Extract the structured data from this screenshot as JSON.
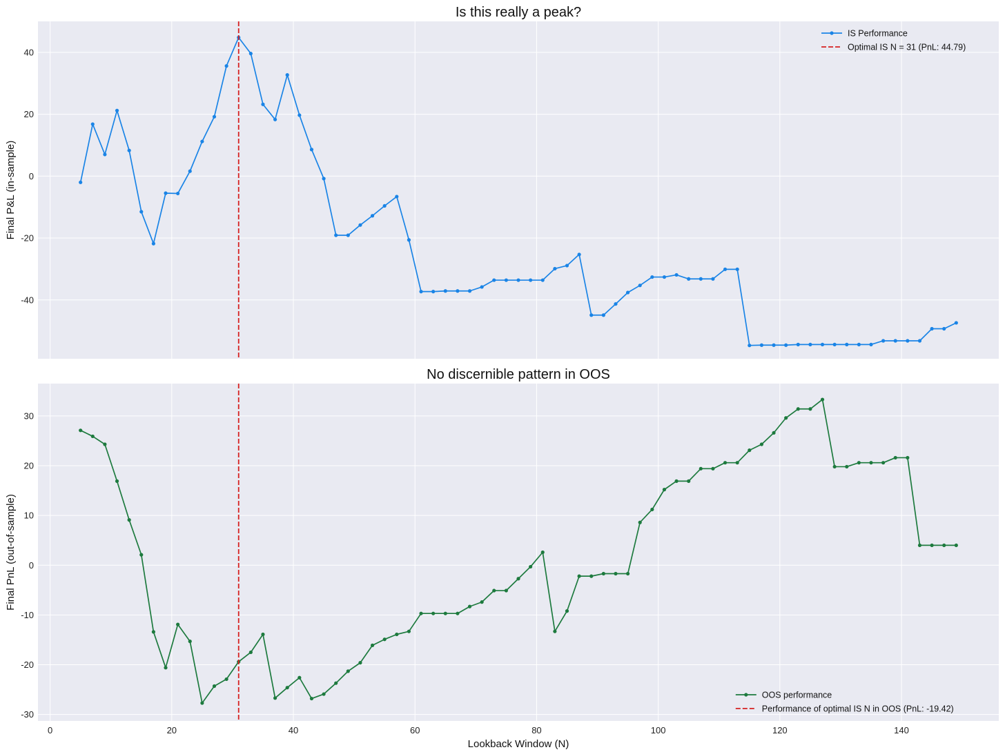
{
  "chart_data": [
    {
      "type": "line",
      "title": "Is this really a peak?",
      "xlabel": "",
      "ylabel": "Final P&L (in-sample)",
      "xlim": [
        -2,
        156
      ],
      "ylim": [
        -59,
        50
      ],
      "x_ticks": [
        0,
        20,
        40,
        60,
        80,
        100,
        120,
        140
      ],
      "y_ticks": [
        40,
        20,
        0,
        -20,
        -40
      ],
      "y_tick_labels": [
        "40",
        "20",
        "0",
        "-20",
        "-40"
      ],
      "grid": true,
      "background": "#e9eaf2",
      "legend_position": "top-right",
      "x": [
        5,
        7,
        9,
        11,
        13,
        15,
        17,
        19,
        21,
        23,
        25,
        27,
        29,
        31,
        33,
        35,
        37,
        39,
        41,
        43,
        45,
        47,
        49,
        51,
        53,
        55,
        57,
        59,
        61,
        63,
        65,
        67,
        69,
        71,
        73,
        75,
        77,
        79,
        81,
        83,
        85,
        87,
        89,
        91,
        93,
        95,
        97,
        99,
        101,
        103,
        105,
        107,
        109,
        111,
        113,
        115,
        117,
        119,
        121,
        123,
        125,
        127,
        129,
        131,
        133,
        135,
        137,
        139,
        141,
        143,
        145,
        147,
        149
      ],
      "series": [
        {
          "name": "IS Performance",
          "color": "#1a84e6",
          "values": [
            -2,
            16.8,
            7,
            21.2,
            8.3,
            -11.5,
            -21.8,
            -5.5,
            -5.6,
            1.6,
            11.2,
            19.2,
            35.6,
            44.8,
            39.6,
            23.2,
            18.3,
            32.7,
            19.7,
            8.6,
            -0.8,
            -19.1,
            -19.1,
            -15.8,
            -12.8,
            -9.6,
            -6.6,
            -20.6,
            -37.3,
            -37.3,
            -37.1,
            -37.1,
            -37.1,
            -35.8,
            -33.6,
            -33.6,
            -33.6,
            -33.6,
            -33.6,
            -29.9,
            -28.9,
            -25.3,
            -44.9,
            -44.9,
            -41.3,
            -37.6,
            -35.3,
            -32.6,
            -32.6,
            -31.9,
            -33.2,
            -33.2,
            -33.2,
            -30.1,
            -30.1,
            -54.7,
            -54.6,
            -54.6,
            -54.6,
            -54.4,
            -54.4,
            -54.4,
            -54.4,
            -54.4,
            -54.4,
            -54.4,
            -53.2,
            -53.2,
            -53.2,
            -53.2,
            -49.3,
            -49.3,
            -47.4
          ]
        },
        {
          "name": "Optimal IS N = 31 (PnL: 44.79)",
          "color": "#d62020",
          "style": "dashed",
          "x_value": 31
        }
      ]
    },
    {
      "type": "line",
      "title": "No discernible pattern in OOS",
      "xlabel": "Lookback Window (N)",
      "ylabel": "Final PnL (out-of-sample)",
      "xlim": [
        -2,
        156
      ],
      "ylim": [
        -31.3,
        36.5
      ],
      "x_ticks": [
        0,
        20,
        40,
        60,
        80,
        100,
        120,
        140
      ],
      "x_tick_labels": [
        "0",
        "20",
        "40",
        "60",
        "80",
        "100",
        "120",
        "140"
      ],
      "y_ticks": [
        30,
        20,
        10,
        0,
        -10,
        -20,
        -30
      ],
      "y_tick_labels": [
        "30",
        "20",
        "10",
        "0",
        "-10",
        "-20",
        "-30"
      ],
      "grid": true,
      "background": "#e9eaf2",
      "legend_position": "bottom-right",
      "x": [
        5,
        7,
        9,
        11,
        13,
        15,
        17,
        19,
        21,
        23,
        25,
        27,
        29,
        31,
        33,
        35,
        37,
        39,
        41,
        43,
        45,
        47,
        49,
        51,
        53,
        55,
        57,
        59,
        61,
        63,
        65,
        67,
        69,
        71,
        73,
        75,
        77,
        79,
        81,
        83,
        85,
        87,
        89,
        91,
        93,
        95,
        97,
        99,
        101,
        103,
        105,
        107,
        109,
        111,
        113,
        115,
        117,
        119,
        121,
        123,
        125,
        127,
        129,
        131,
        133,
        135,
        137,
        139,
        141,
        143,
        145,
        147,
        149
      ],
      "series": [
        {
          "name": "OOS performance",
          "color": "#1d7a3e",
          "values": [
            27.1,
            25.9,
            24.3,
            16.9,
            9.1,
            2.1,
            -13.4,
            -20.6,
            -11.9,
            -15.3,
            -27.7,
            -24.3,
            -22.9,
            -19.4,
            -17.5,
            -13.9,
            -26.7,
            -24.6,
            -22.6,
            -26.8,
            -25.9,
            -23.7,
            -21.3,
            -19.6,
            -16.1,
            -14.9,
            -13.9,
            -13.3,
            -9.7,
            -9.7,
            -9.7,
            -9.7,
            -8.3,
            -7.4,
            -5.1,
            -5.1,
            -2.7,
            -0.3,
            2.6,
            -13.3,
            -9.2,
            -2.2,
            -2.2,
            -1.7,
            -1.7,
            -1.7,
            8.6,
            11.2,
            15.2,
            16.9,
            16.9,
            19.4,
            19.4,
            20.6,
            20.6,
            23.1,
            24.3,
            26.6,
            29.6,
            31.4,
            31.4,
            33.3,
            19.8,
            19.8,
            20.6,
            20.6,
            20.6,
            21.6,
            21.6,
            4.0,
            4.0,
            4.0,
            4.0
          ]
        },
        {
          "name": "Performance of optimal IS N in OOS (PnL: -19.42)",
          "color": "#d62020",
          "style": "dashed",
          "x_value": 31
        }
      ]
    }
  ]
}
